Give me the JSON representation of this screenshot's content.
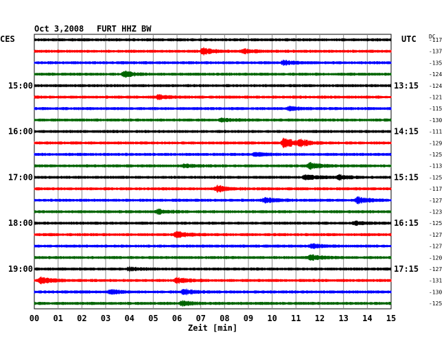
{
  "header": {
    "date": "Oct 3,2008",
    "station": "FURT HHZ BW",
    "left_zone": "CES",
    "right_zone": "UTC",
    "dc_label": "DC"
  },
  "chart_data": {
    "type": "line",
    "title": "Oct 3,2008   FURT HHZ BW",
    "xlabel": "Zeit [min]",
    "xlim": [
      0,
      15
    ],
    "x_ticks": [
      "00",
      "01",
      "02",
      "03",
      "04",
      "05",
      "06",
      "07",
      "08",
      "09",
      "10",
      "11",
      "12",
      "13",
      "14",
      "15"
    ],
    "grid": true,
    "trace_colors": [
      "#000000",
      "#ff0000",
      "#0000ff",
      "#006400"
    ],
    "local_time_labels": [
      {
        "trace_index": 4,
        "label": "15:00"
      },
      {
        "trace_index": 8,
        "label": "16:00"
      },
      {
        "trace_index": 12,
        "label": "17:00"
      },
      {
        "trace_index": 16,
        "label": "18:00"
      },
      {
        "trace_index": 20,
        "label": "19:00"
      }
    ],
    "utc_time_labels": [
      {
        "trace_index": 4,
        "label": "13:15"
      },
      {
        "trace_index": 8,
        "label": "14:15"
      },
      {
        "trace_index": 12,
        "label": "15:15"
      },
      {
        "trace_index": 16,
        "label": "16:15"
      },
      {
        "trace_index": 20,
        "label": "17:15"
      }
    ],
    "dc_offsets": [
      "-117",
      "-137",
      "-135",
      "-124",
      "-124",
      "-121",
      "-115",
      "-130",
      "-111",
      "-129",
      "-125",
      "-113",
      "-125",
      "-117",
      "-127",
      "-123",
      "-125",
      "-127",
      "-127",
      "-120",
      "-127",
      "-131",
      "-130",
      "-125"
    ],
    "events": [
      {
        "trace_index": 1,
        "minute": 7.1,
        "amp": 0.6
      },
      {
        "trace_index": 1,
        "minute": 8.8,
        "amp": 0.4
      },
      {
        "trace_index": 2,
        "minute": 10.5,
        "amp": 0.4
      },
      {
        "trace_index": 3,
        "minute": 3.8,
        "amp": 0.5
      },
      {
        "trace_index": 5,
        "minute": 5.2,
        "amp": 0.4
      },
      {
        "trace_index": 6,
        "minute": 10.7,
        "amp": 0.3
      },
      {
        "trace_index": 7,
        "minute": 7.9,
        "amp": 0.3
      },
      {
        "trace_index": 9,
        "minute": 10.5,
        "amp": 1.0
      },
      {
        "trace_index": 9,
        "minute": 11.2,
        "amp": 0.5
      },
      {
        "trace_index": 10,
        "minute": 9.3,
        "amp": 0.3
      },
      {
        "trace_index": 11,
        "minute": 11.6,
        "amp": 0.6
      },
      {
        "trace_index": 11,
        "minute": 6.3,
        "amp": 0.3
      },
      {
        "trace_index": 12,
        "minute": 11.4,
        "amp": 0.5
      },
      {
        "trace_index": 12,
        "minute": 12.8,
        "amp": 0.4
      },
      {
        "trace_index": 13,
        "minute": 7.7,
        "amp": 0.6
      },
      {
        "trace_index": 14,
        "minute": 13.6,
        "amp": 0.6
      },
      {
        "trace_index": 14,
        "minute": 9.7,
        "amp": 0.5
      },
      {
        "trace_index": 15,
        "minute": 5.2,
        "amp": 0.4
      },
      {
        "trace_index": 16,
        "minute": 13.5,
        "amp": 0.3
      },
      {
        "trace_index": 17,
        "minute": 6.0,
        "amp": 0.6
      },
      {
        "trace_index": 18,
        "minute": 11.7,
        "amp": 0.4
      },
      {
        "trace_index": 19,
        "minute": 11.6,
        "amp": 0.5
      },
      {
        "trace_index": 20,
        "minute": 4.0,
        "amp": 0.3
      },
      {
        "trace_index": 21,
        "minute": 0.3,
        "amp": 0.6
      },
      {
        "trace_index": 21,
        "minute": 6.0,
        "amp": 0.5
      },
      {
        "trace_index": 22,
        "minute": 3.2,
        "amp": 0.4
      },
      {
        "trace_index": 22,
        "minute": 6.3,
        "amp": 0.5
      },
      {
        "trace_index": 23,
        "minute": 6.2,
        "amp": 0.4
      }
    ]
  }
}
